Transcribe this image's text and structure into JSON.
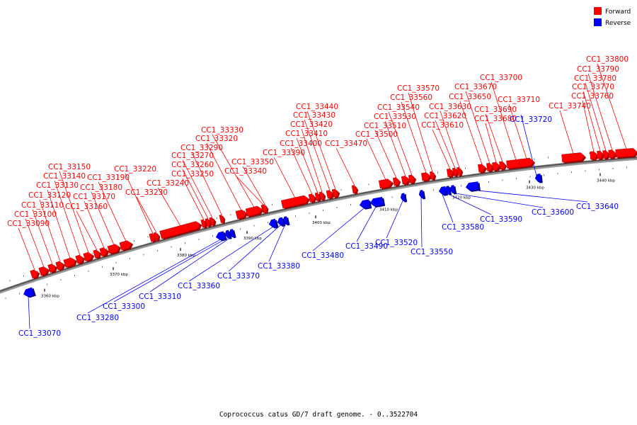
{
  "legend": {
    "forward": {
      "label": "Forward",
      "color": "#ff0000"
    },
    "reverse": {
      "label": "Reverse",
      "color": "#0000ff"
    }
  },
  "caption": "Coprococcus catus GD/7 draft genome. - 0..3522704",
  "ticks": [
    "3360 kbp",
    "3370 kbp",
    "3380 kbp",
    "3390 kbp",
    "3400 kbp",
    "3410 kbp",
    "3420 kbp",
    "3430 kbp",
    "3440 kbp"
  ],
  "genes": [
    {
      "id": "CC1_33070",
      "strand": "reverse"
    },
    {
      "id": "CC1_33090",
      "strand": "forward"
    },
    {
      "id": "CC1_33100",
      "strand": "forward"
    },
    {
      "id": "CC1_33110",
      "strand": "forward"
    },
    {
      "id": "CC1_33120",
      "strand": "forward"
    },
    {
      "id": "CC1_33130",
      "strand": "forward"
    },
    {
      "id": "CC1_33140",
      "strand": "forward"
    },
    {
      "id": "CC1_33150",
      "strand": "forward"
    },
    {
      "id": "CC1_33160",
      "strand": "forward"
    },
    {
      "id": "CC1_33170",
      "strand": "forward"
    },
    {
      "id": "CC1_33180",
      "strand": "forward"
    },
    {
      "id": "CC1_33190",
      "strand": "forward"
    },
    {
      "id": "CC1_33220",
      "strand": "forward"
    },
    {
      "id": "CC1_33230",
      "strand": "forward"
    },
    {
      "id": "CC1_33240",
      "strand": "forward"
    },
    {
      "id": "CC1_33250",
      "strand": "forward"
    },
    {
      "id": "CC1_33260",
      "strand": "forward"
    },
    {
      "id": "CC1_33270",
      "strand": "forward"
    },
    {
      "id": "CC1_33280",
      "strand": "reverse"
    },
    {
      "id": "CC1_33290",
      "strand": "forward"
    },
    {
      "id": "CC1_33300",
      "strand": "reverse"
    },
    {
      "id": "CC1_33310",
      "strand": "reverse"
    },
    {
      "id": "CC1_33320",
      "strand": "forward"
    },
    {
      "id": "CC1_33330",
      "strand": "forward"
    },
    {
      "id": "CC1_33340",
      "strand": "forward"
    },
    {
      "id": "CC1_33350",
      "strand": "forward"
    },
    {
      "id": "CC1_33360",
      "strand": "reverse"
    },
    {
      "id": "CC1_33370",
      "strand": "reverse"
    },
    {
      "id": "CC1_33380",
      "strand": "reverse"
    },
    {
      "id": "CC1_33390",
      "strand": "forward"
    },
    {
      "id": "CC1_33400",
      "strand": "forward"
    },
    {
      "id": "CC1_33410",
      "strand": "forward"
    },
    {
      "id": "CC1_33420",
      "strand": "forward"
    },
    {
      "id": "CC1_33430",
      "strand": "forward"
    },
    {
      "id": "CC1_33440",
      "strand": "forward"
    },
    {
      "id": "CC1_33470",
      "strand": "forward"
    },
    {
      "id": "CC1_33480",
      "strand": "reverse"
    },
    {
      "id": "CC1_33490",
      "strand": "reverse"
    },
    {
      "id": "CC1_33500",
      "strand": "forward"
    },
    {
      "id": "CC1_33510",
      "strand": "forward"
    },
    {
      "id": "CC1_33520",
      "strand": "reverse"
    },
    {
      "id": "CC1_33530",
      "strand": "forward"
    },
    {
      "id": "CC1_33540",
      "strand": "forward"
    },
    {
      "id": "CC1_33550",
      "strand": "reverse"
    },
    {
      "id": "CC1_33560",
      "strand": "forward"
    },
    {
      "id": "CC1_33570",
      "strand": "forward"
    },
    {
      "id": "CC1_33580",
      "strand": "reverse"
    },
    {
      "id": "CC1_33590",
      "strand": "reverse"
    },
    {
      "id": "CC1_33600",
      "strand": "reverse"
    },
    {
      "id": "CC1_33610",
      "strand": "forward"
    },
    {
      "id": "CC1_33620",
      "strand": "forward"
    },
    {
      "id": "CC1_33630",
      "strand": "forward"
    },
    {
      "id": "CC1_33640",
      "strand": "reverse"
    },
    {
      "id": "CC1_33650",
      "strand": "forward"
    },
    {
      "id": "CC1_33670",
      "strand": "forward"
    },
    {
      "id": "CC1_33680",
      "strand": "forward"
    },
    {
      "id": "CC1_33690",
      "strand": "forward"
    },
    {
      "id": "CC1_33700",
      "strand": "forward"
    },
    {
      "id": "CC1_33710",
      "strand": "forward"
    },
    {
      "id": "CC1_33720",
      "strand": "reverse"
    },
    {
      "id": "CC1_33740",
      "strand": "forward"
    },
    {
      "id": "CC1_33760",
      "strand": "forward"
    },
    {
      "id": "CC1_33770",
      "strand": "forward"
    },
    {
      "id": "CC1_33780",
      "strand": "forward"
    },
    {
      "id": "CC1_33790",
      "strand": "forward"
    },
    {
      "id": "CC1_33800",
      "strand": "forward"
    }
  ]
}
